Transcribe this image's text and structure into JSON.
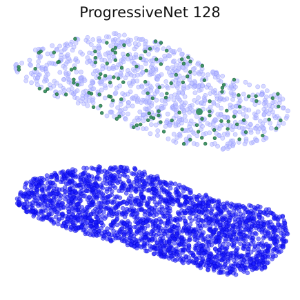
{
  "figure": {
    "title": "ProgressiveNet 128",
    "colors": {
      "background": "#ffffff",
      "sampled_cloud": "#b8bcff",
      "sampled_points": "#2e8b57",
      "full_cloud": "#1a1aff"
    }
  }
}
